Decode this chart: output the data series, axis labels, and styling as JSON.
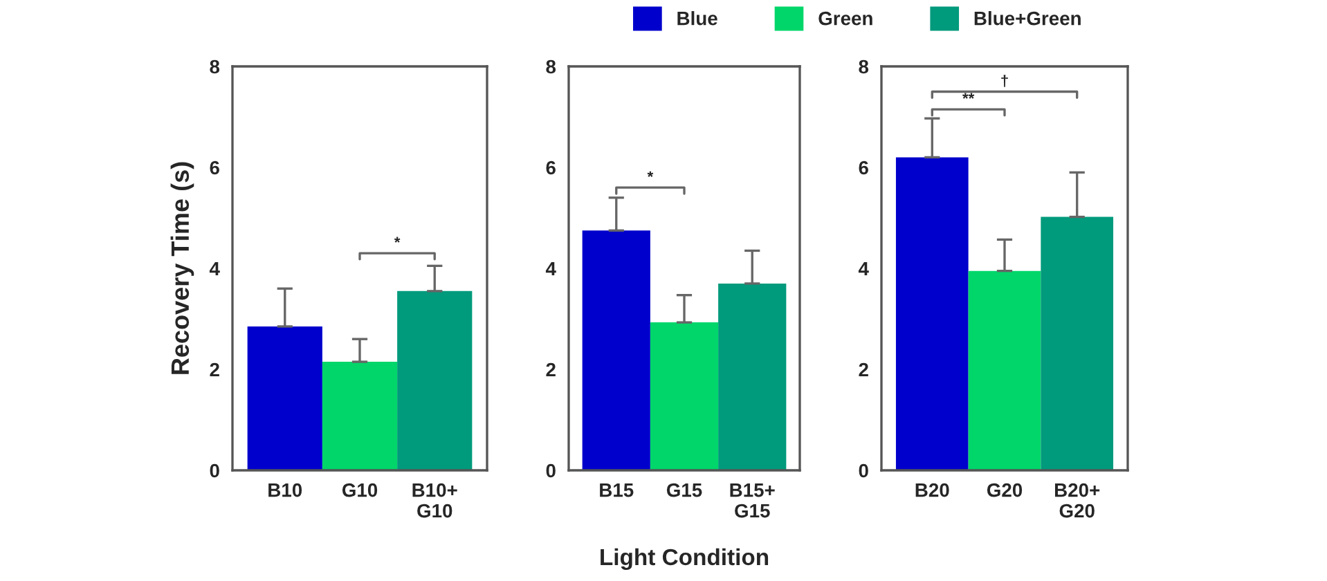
{
  "chart_data": [
    {
      "type": "bar",
      "ylabel": "Recovery Time (s)",
      "categories": [
        "B10",
        "G10",
        "B10+\nG10"
      ],
      "series": [
        {
          "color": "#0000cc",
          "values": [
            2.85,
            null,
            null
          ],
          "errors": [
            [
              2.85,
              3.6
            ],
            null,
            null
          ]
        },
        {
          "color": "#00d66a",
          "values": [
            null,
            2.15,
            null
          ],
          "errors": [
            null,
            [
              2.15,
              2.6
            ],
            null
          ]
        },
        {
          "color": "#009a7c",
          "values": [
            null,
            null,
            3.55
          ],
          "errors": [
            null,
            null,
            [
              3.55,
              4.05
            ]
          ]
        }
      ],
      "ylim": [
        0,
        8
      ],
      "yticks": [
        0,
        2,
        4,
        6,
        8
      ],
      "grid": false,
      "annotations": [
        "*"
      ]
    },
    {
      "type": "bar",
      "xlabel": "Light Condition",
      "categories": [
        "B15",
        "G15",
        "B15+\nG15"
      ],
      "series": [
        {
          "color": "#0000cc",
          "values": [
            4.75,
            null,
            null
          ],
          "errors": [
            [
              4.75,
              5.4
            ],
            null,
            null
          ]
        },
        {
          "color": "#00d66a",
          "values": [
            null,
            2.93,
            null
          ],
          "errors": [
            null,
            [
              2.93,
              3.47
            ],
            null
          ]
        },
        {
          "color": "#009a7c",
          "values": [
            null,
            null,
            3.7
          ],
          "errors": [
            null,
            null,
            [
              3.7,
              4.35
            ]
          ]
        }
      ],
      "ylim": [
        0,
        8
      ],
      "yticks": [
        0,
        2,
        4,
        6,
        8
      ],
      "grid": false,
      "annotations": [
        "*"
      ]
    },
    {
      "type": "bar",
      "categories": [
        "B20",
        "G20",
        "B20+\nG20"
      ],
      "series": [
        {
          "name": "Blue",
          "color": "#0000cc",
          "values": [
            6.2,
            null,
            null
          ],
          "errors": [
            [
              6.2,
              6.97
            ],
            null,
            null
          ]
        },
        {
          "name": "Green",
          "color": "#00d66a",
          "values": [
            null,
            3.95,
            null
          ],
          "errors": [
            null,
            [
              3.95,
              4.57
            ],
            null
          ]
        },
        {
          "name": "Blue+Green",
          "color": "#009a7c",
          "values": [
            null,
            null,
            5.02
          ],
          "errors": [
            null,
            null,
            [
              5.02,
              5.9
            ]
          ]
        }
      ],
      "ylim": [
        0,
        8
      ],
      "yticks": [
        0,
        2,
        4,
        6,
        8
      ],
      "grid": false,
      "legend": "top",
      "annotations": [
        "**",
        "†"
      ]
    }
  ]
}
